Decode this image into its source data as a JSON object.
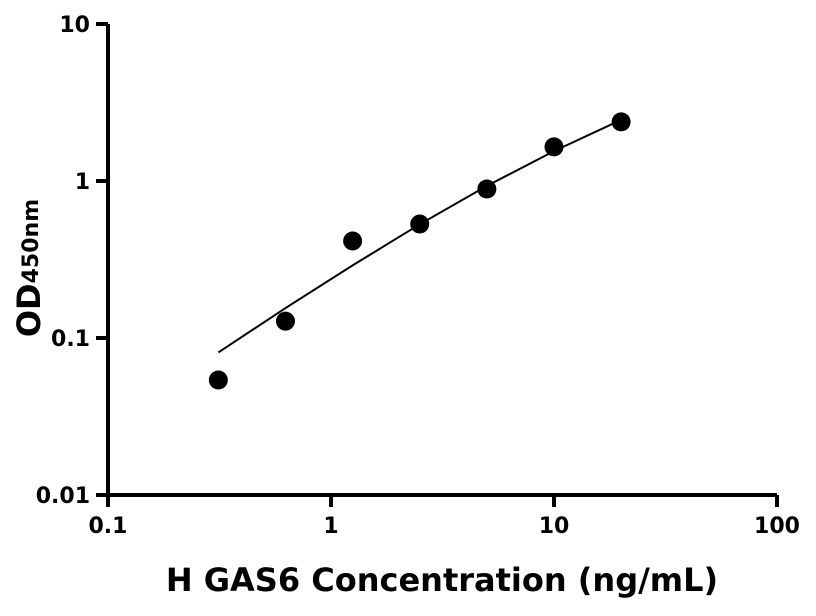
{
  "chart_data": {
    "type": "scatter",
    "title": "",
    "xlabel": "H GAS6 Concentration (ng/mL)",
    "ylabel": "OD",
    "ylabel_sub": "450nm",
    "xscale": "log",
    "yscale": "log",
    "xlim": [
      0.1,
      100
    ],
    "ylim": [
      0.01,
      10
    ],
    "xticks": [
      0.1,
      1,
      10,
      100
    ],
    "xtick_labels": [
      "0.1",
      "1",
      "10",
      "100"
    ],
    "yticks": [
      0.01,
      0.1,
      1,
      10
    ],
    "ytick_labels": [
      "0.01",
      "0.1",
      "1",
      "10"
    ],
    "grid": false,
    "points": {
      "x": [
        0.3125,
        0.625,
        1.25,
        2.5,
        5,
        10,
        20
      ],
      "y": [
        0.054,
        0.128,
        0.415,
        0.532,
        0.889,
        1.65,
        2.38
      ],
      "color": "#000000"
    },
    "fit_curve": {
      "x": [
        0.3125,
        0.625,
        1.25,
        2.5,
        5,
        10,
        20
      ],
      "y": [
        0.081,
        0.155,
        0.29,
        0.53,
        0.93,
        1.55,
        2.45
      ],
      "color": "#000000"
    }
  }
}
